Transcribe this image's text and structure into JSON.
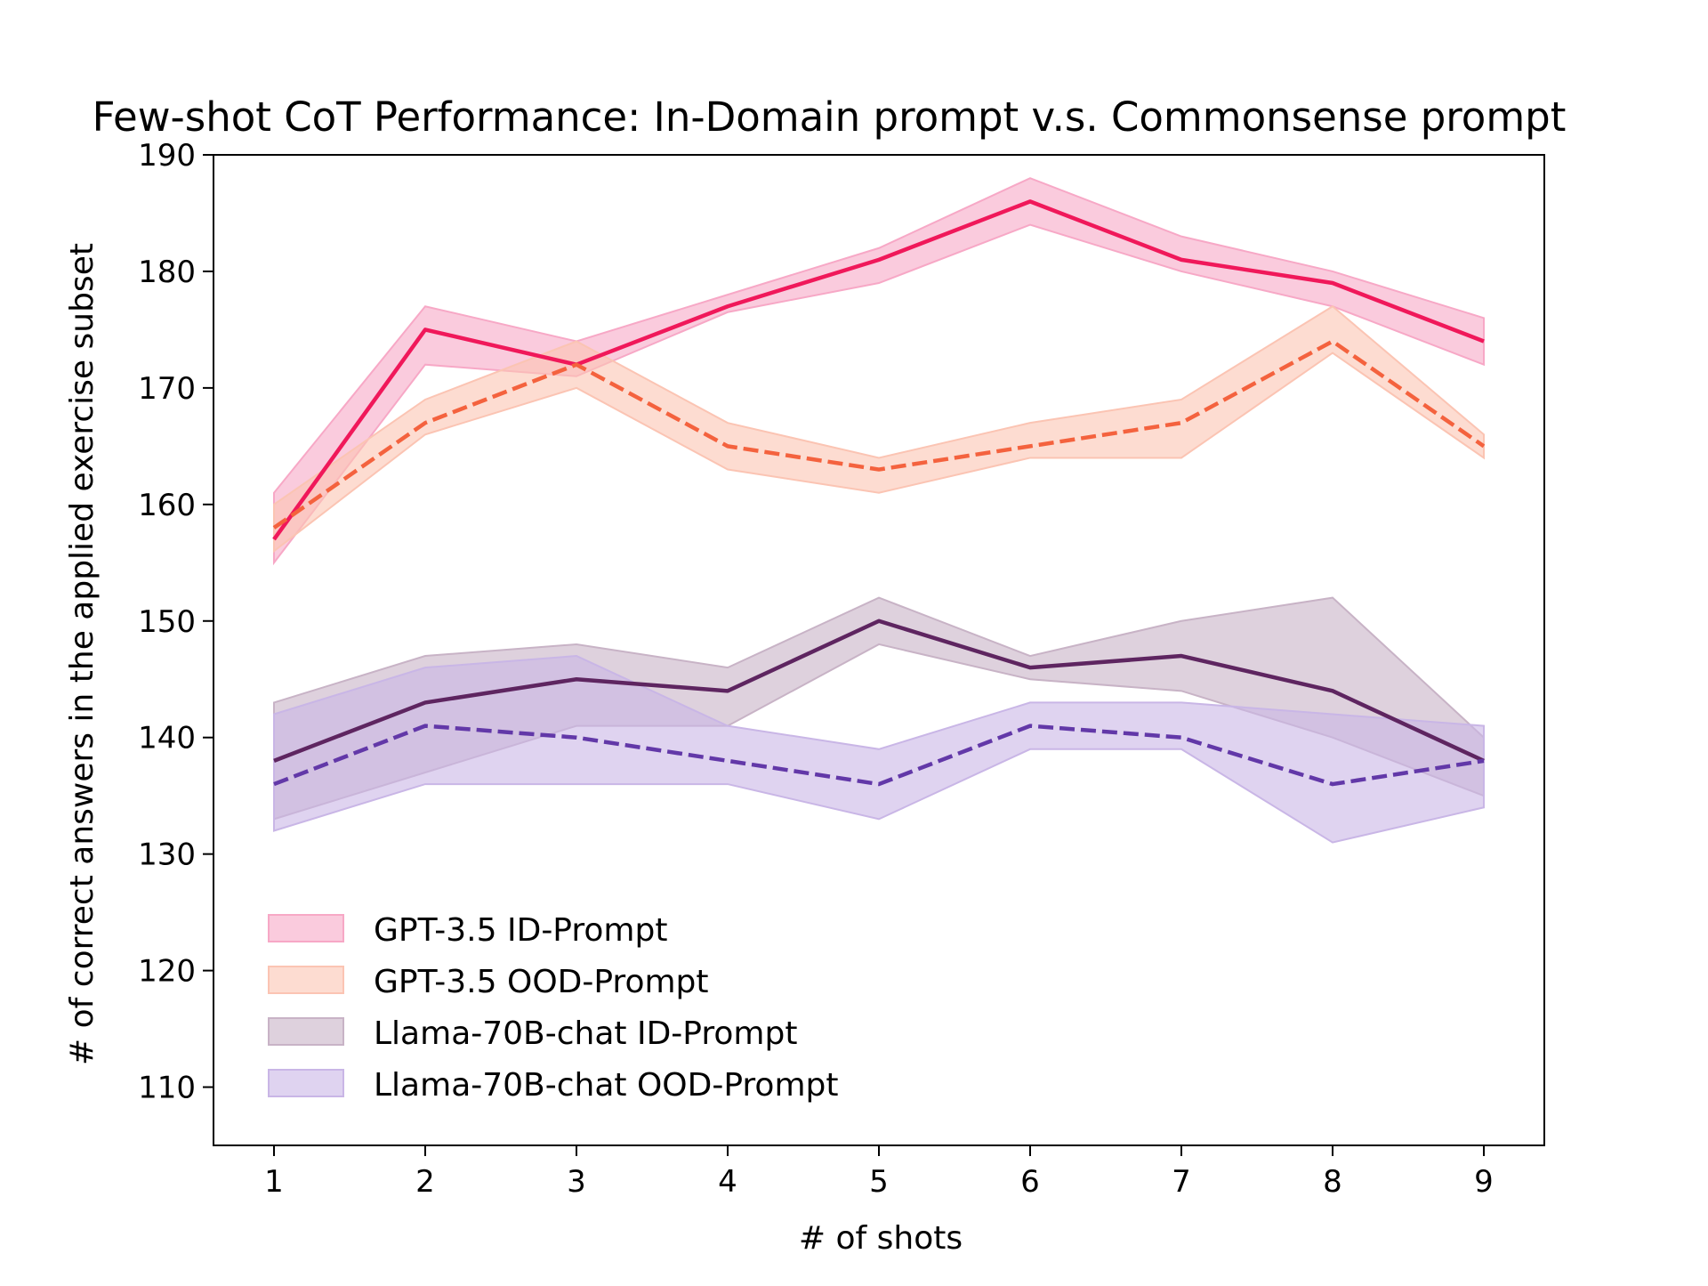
{
  "chart_data": {
    "type": "line",
    "title": "Few-shot CoT Performance: In-Domain prompt v.s. Commonsense prompt",
    "xlabel": "# of shots",
    "ylabel": "# of correct answers in the applied exercise subset",
    "x": [
      1,
      2,
      3,
      4,
      5,
      6,
      7,
      8,
      9
    ],
    "xlim": [
      0.6,
      9.4
    ],
    "ylim": [
      105,
      190
    ],
    "xticks": [
      "1",
      "2",
      "3",
      "4",
      "5",
      "6",
      "7",
      "8",
      "9"
    ],
    "yticks": [
      "110",
      "120",
      "130",
      "140",
      "150",
      "160",
      "170",
      "180",
      "190"
    ],
    "ytick_values": [
      110,
      120,
      130,
      140,
      150,
      160,
      170,
      180,
      190
    ],
    "grid": false,
    "legend_position": "lower-left",
    "series": [
      {
        "name": "GPT-3.5 ID-Prompt",
        "color": "#f0185a",
        "linestyle": "solid",
        "values": [
          157,
          175,
          172,
          177,
          181,
          186,
          181,
          179,
          174
        ],
        "lower": [
          155,
          172,
          171,
          176.5,
          179,
          184,
          180,
          177,
          172
        ],
        "upper": [
          161,
          177,
          174,
          178,
          182,
          188,
          183,
          180,
          176
        ]
      },
      {
        "name": "GPT-3.5 OOD-Prompt",
        "color": "#f4623e",
        "linestyle": "dashed",
        "values": [
          158,
          167,
          172,
          165,
          163,
          165,
          167,
          174,
          165
        ],
        "lower": [
          156,
          166,
          170,
          163,
          161,
          164,
          164,
          173,
          164
        ],
        "upper": [
          160,
          169,
          174,
          167,
          164,
          167,
          169,
          177,
          166
        ]
      },
      {
        "name": "Llama-70B-chat ID-Prompt",
        "color": "#5e2560",
        "linestyle": "solid",
        "values": [
          138,
          143,
          145,
          144,
          150,
          146,
          147,
          144,
          138
        ],
        "lower": [
          133,
          137,
          141,
          141,
          148,
          145,
          144,
          140,
          135
        ],
        "upper": [
          143,
          147,
          148,
          146,
          152,
          147,
          150,
          152,
          140
        ]
      },
      {
        "name": "Llama-70B-chat OOD-Prompt",
        "color": "#6238a8",
        "linestyle": "dashed",
        "values": [
          136,
          141,
          140,
          138,
          136,
          141,
          140,
          136,
          138
        ],
        "lower": [
          132,
          136,
          136,
          136,
          133,
          139,
          139,
          131,
          134
        ],
        "upper": [
          142,
          146,
          147,
          141,
          139,
          143,
          143,
          142,
          141
        ]
      }
    ],
    "band_colors": [
      "#f7a8c6",
      "#fbc4b3",
      "#c8b3c6",
      "#c9b6e6"
    ]
  }
}
